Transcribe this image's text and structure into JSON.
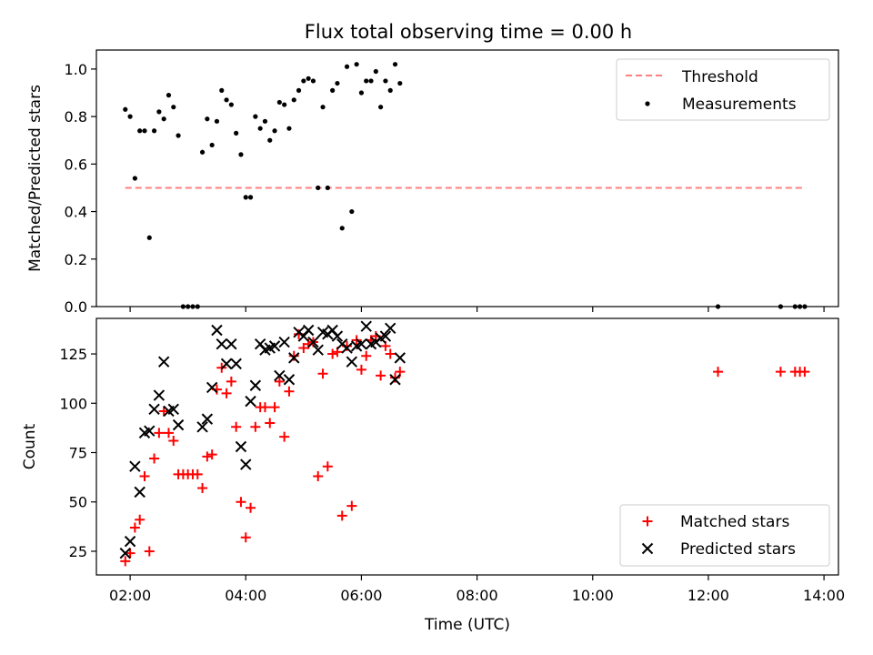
{
  "title": "Flux total observing time = 0.00 h",
  "xlabel": "Time (UTC)",
  "colors": {
    "threshold": "#ff7f7f",
    "measurements": "#000000",
    "matched": "#ff0000",
    "predicted": "#000000"
  },
  "chart_data": [
    {
      "type": "scatter",
      "ylabel": "Matched/Predicted stars",
      "ylim": [
        0.0,
        1.08
      ],
      "xlim": [
        "01:25",
        "14:15"
      ],
      "yticks": [
        "0.0",
        "0.2",
        "0.4",
        "0.6",
        "0.8",
        "1.0"
      ],
      "legend_position": "upper-right",
      "threshold": {
        "name": "Threshold",
        "value": 0.5,
        "x_range": [
          "01:55",
          "13:40"
        ]
      },
      "series": [
        {
          "name": "Measurements",
          "marker": "dot",
          "points": [
            [
              "01:55",
              0.83
            ],
            [
              "02:00",
              0.8
            ],
            [
              "02:05",
              0.54
            ],
            [
              "02:10",
              0.74
            ],
            [
              "02:15",
              0.74
            ],
            [
              "02:20",
              0.29
            ],
            [
              "02:25",
              0.74
            ],
            [
              "02:30",
              0.82
            ],
            [
              "02:35",
              0.79
            ],
            [
              "02:40",
              0.89
            ],
            [
              "02:45",
              0.84
            ],
            [
              "02:50",
              0.72
            ],
            [
              "02:55",
              0.0
            ],
            [
              "03:00",
              0.0
            ],
            [
              "03:05",
              0.0
            ],
            [
              "03:10",
              0.0
            ],
            [
              "03:15",
              0.65
            ],
            [
              "03:20",
              0.79
            ],
            [
              "03:25",
              0.68
            ],
            [
              "03:30",
              0.78
            ],
            [
              "03:35",
              0.91
            ],
            [
              "03:40",
              0.87
            ],
            [
              "03:45",
              0.85
            ],
            [
              "03:50",
              0.73
            ],
            [
              "03:55",
              0.64
            ],
            [
              "04:00",
              0.46
            ],
            [
              "04:05",
              0.46
            ],
            [
              "04:10",
              0.8
            ],
            [
              "04:15",
              0.75
            ],
            [
              "04:20",
              0.78
            ],
            [
              "04:25",
              0.7
            ],
            [
              "04:30",
              0.74
            ],
            [
              "04:35",
              0.86
            ],
            [
              "04:40",
              0.85
            ],
            [
              "04:45",
              0.75
            ],
            [
              "04:50",
              0.87
            ],
            [
              "04:55",
              0.91
            ],
            [
              "05:00",
              0.95
            ],
            [
              "05:05",
              0.96
            ],
            [
              "05:10",
              0.95
            ],
            [
              "05:15",
              0.5
            ],
            [
              "05:20",
              0.84
            ],
            [
              "05:25",
              0.5
            ],
            [
              "05:30",
              0.91
            ],
            [
              "05:35",
              0.94
            ],
            [
              "05:40",
              0.33
            ],
            [
              "05:45",
              1.01
            ],
            [
              "05:50",
              0.4
            ],
            [
              "05:55",
              1.02
            ],
            [
              "06:00",
              0.9
            ],
            [
              "06:05",
              0.95
            ],
            [
              "06:10",
              0.95
            ],
            [
              "06:15",
              0.99
            ],
            [
              "06:20",
              0.84
            ],
            [
              "06:25",
              0.95
            ],
            [
              "06:30",
              0.91
            ],
            [
              "06:35",
              1.02
            ],
            [
              "06:40",
              0.94
            ],
            [
              "12:10",
              0.0
            ],
            [
              "13:15",
              0.0
            ],
            [
              "13:30",
              0.0
            ],
            [
              "13:35",
              0.0
            ],
            [
              "13:40",
              0.0
            ]
          ]
        }
      ]
    },
    {
      "type": "scatter",
      "ylabel": "Count",
      "ylim": [
        13,
        143
      ],
      "xlim": [
        "01:25",
        "14:15"
      ],
      "yticks": [
        "25",
        "50",
        "75",
        "100",
        "125"
      ],
      "xticks": [
        "02:00",
        "04:00",
        "06:00",
        "08:00",
        "10:00",
        "12:00",
        "14:00"
      ],
      "legend_position": "lower-right",
      "series": [
        {
          "name": "Matched stars",
          "marker": "plus",
          "points": [
            [
              "01:55",
              20
            ],
            [
              "02:00",
              24
            ],
            [
              "02:05",
              37
            ],
            [
              "02:10",
              41
            ],
            [
              "02:15",
              63
            ],
            [
              "02:20",
              25
            ],
            [
              "02:25",
              72
            ],
            [
              "02:30",
              85
            ],
            [
              "02:35",
              96
            ],
            [
              "02:40",
              85
            ],
            [
              "02:45",
              81
            ],
            [
              "02:50",
              64
            ],
            [
              "02:55",
              64
            ],
            [
              "03:00",
              64
            ],
            [
              "03:05",
              64
            ],
            [
              "03:10",
              64
            ],
            [
              "03:15",
              57
            ],
            [
              "03:20",
              73
            ],
            [
              "03:25",
              74
            ],
            [
              "03:30",
              107
            ],
            [
              "03:35",
              118
            ],
            [
              "03:40",
              105
            ],
            [
              "03:45",
              111
            ],
            [
              "03:50",
              88
            ],
            [
              "03:55",
              50
            ],
            [
              "04:00",
              32
            ],
            [
              "04:05",
              47
            ],
            [
              "04:10",
              88
            ],
            [
              "04:15",
              98
            ],
            [
              "04:20",
              98
            ],
            [
              "04:25",
              90
            ],
            [
              "04:30",
              98
            ],
            [
              "04:35",
              111
            ],
            [
              "04:40",
              83
            ],
            [
              "04:45",
              106
            ],
            [
              "04:50",
              124
            ],
            [
              "04:55",
              135
            ],
            [
              "05:00",
              128
            ],
            [
              "05:05",
              130
            ],
            [
              "05:10",
              131
            ],
            [
              "05:15",
              63
            ],
            [
              "05:20",
              115
            ],
            [
              "05:25",
              68
            ],
            [
              "05:30",
              125
            ],
            [
              "05:35",
              126
            ],
            [
              "05:40",
              43
            ],
            [
              "05:45",
              129
            ],
            [
              "05:50",
              48
            ],
            [
              "05:55",
              132
            ],
            [
              "06:00",
              117
            ],
            [
              "06:05",
              124
            ],
            [
              "06:10",
              132
            ],
            [
              "06:15",
              134
            ],
            [
              "06:20",
              114
            ],
            [
              "06:25",
              129
            ],
            [
              "06:30",
              125
            ],
            [
              "06:35",
              113
            ],
            [
              "06:40",
              116
            ],
            [
              "12:10",
              116
            ],
            [
              "13:15",
              116
            ],
            [
              "13:30",
              116
            ],
            [
              "13:35",
              116
            ],
            [
              "13:40",
              116
            ]
          ]
        },
        {
          "name": "Predicted stars",
          "marker": "x",
          "points": [
            [
              "01:55",
              24
            ],
            [
              "02:00",
              30
            ],
            [
              "02:05",
              68
            ],
            [
              "02:10",
              55
            ],
            [
              "02:15",
              85
            ],
            [
              "02:20",
              86
            ],
            [
              "02:25",
              97
            ],
            [
              "02:30",
              104
            ],
            [
              "02:35",
              121
            ],
            [
              "02:40",
              96
            ],
            [
              "02:45",
              97
            ],
            [
              "02:50",
              89
            ],
            [
              "03:15",
              88
            ],
            [
              "03:20",
              92
            ],
            [
              "03:25",
              108
            ],
            [
              "03:30",
              137
            ],
            [
              "03:35",
              130
            ],
            [
              "03:40",
              120
            ],
            [
              "03:45",
              130
            ],
            [
              "03:50",
              120
            ],
            [
              "03:55",
              78
            ],
            [
              "04:00",
              69
            ],
            [
              "04:05",
              101
            ],
            [
              "04:10",
              109
            ],
            [
              "04:15",
              130
            ],
            [
              "04:20",
              127
            ],
            [
              "04:25",
              128
            ],
            [
              "04:30",
              129
            ],
            [
              "04:35",
              114
            ],
            [
              "04:40",
              131
            ],
            [
              "04:45",
              112
            ],
            [
              "04:50",
              123
            ],
            [
              "04:55",
              136
            ],
            [
              "05:00",
              134
            ],
            [
              "05:05",
              137
            ],
            [
              "05:10",
              131
            ],
            [
              "05:15",
              127
            ],
            [
              "05:20",
              136
            ],
            [
              "05:25",
              135
            ],
            [
              "05:30",
              137
            ],
            [
              "05:35",
              134
            ],
            [
              "05:40",
              130
            ],
            [
              "05:45",
              128
            ],
            [
              "05:50",
              121
            ],
            [
              "05:55",
              129
            ],
            [
              "06:00",
              130
            ],
            [
              "06:05",
              139
            ],
            [
              "06:10",
              130
            ],
            [
              "06:15",
              131
            ],
            [
              "06:20",
              133
            ],
            [
              "06:25",
              134
            ],
            [
              "06:30",
              138
            ],
            [
              "06:35",
              112
            ],
            [
              "06:40",
              123
            ]
          ]
        }
      ]
    }
  ]
}
